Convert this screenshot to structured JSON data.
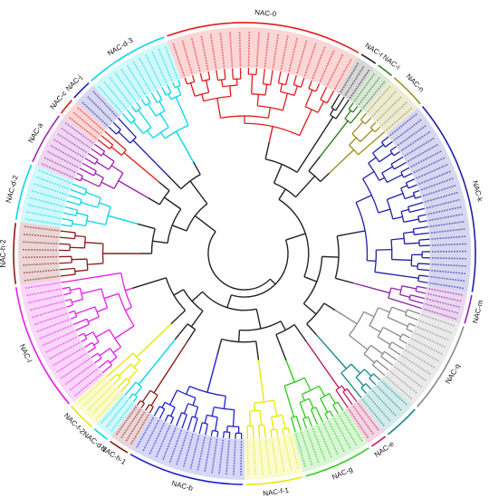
{
  "tree": {
    "clades": [
      {
        "id": "NAC-0",
        "label": "NAC-0",
        "color": "#e41a1c",
        "start": -20,
        "end": 30,
        "leaves": 20
      },
      {
        "id": "NAC-r",
        "label": "NAC-r",
        "color": "#222222",
        "start": 30,
        "end": 35,
        "leaves": 3
      },
      {
        "id": "NAC-i",
        "label": "NAC-i",
        "color": "#2e7d1f",
        "start": 35,
        "end": 40,
        "leaves": 3
      },
      {
        "id": "NAC-n",
        "label": "NAC-n",
        "color": "#9c8f1a",
        "start": 40,
        "end": 50,
        "leaves": 5
      },
      {
        "id": "NAC-k",
        "label": "NAC-k",
        "color": "#1f1fa8",
        "start": 50,
        "end": 100,
        "leaves": 26
      },
      {
        "id": "NAC-m",
        "label": "NAC-m",
        "color": "#8e24aa",
        "start": 100,
        "end": 108,
        "leaves": 5
      },
      {
        "id": "NAC-q",
        "label": "NAC-q",
        "color": "#8a8a8a",
        "start": 108,
        "end": 132,
        "leaves": 12
      },
      {
        "id": "NAC-s",
        "label": "",
        "color": "#138a8a",
        "start": 132,
        "end": 142,
        "leaves": 5
      },
      {
        "id": "NAC-e",
        "label": "NAC-e",
        "color": "#c2185b",
        "start": 142,
        "end": 147,
        "leaves": 3
      },
      {
        "id": "NAC-g",
        "label": "NAC-g",
        "color": "#2ecc1a",
        "start": 147,
        "end": 165,
        "leaves": 10
      },
      {
        "id": "NAC-f-1",
        "label": "NAC-f-1",
        "color": "#e8e800",
        "start": 165,
        "end": 180,
        "leaves": 8
      },
      {
        "id": "NAC-b",
        "label": "NAC-b",
        "color": "#2020d0",
        "start": 180,
        "end": 210,
        "leaves": 16
      },
      {
        "id": "NAC-h-1",
        "label": "NAC-h-1",
        "color": "#8b1a1a",
        "start": 210,
        "end": 216,
        "leaves": 4
      },
      {
        "id": "NAC-d-1",
        "label": "NAC-d-1",
        "color": "#00d8e8",
        "start": 216,
        "end": 221,
        "leaves": 3
      },
      {
        "id": "NAC-f-2",
        "label": "NAC-f-2",
        "color": "#e8e800",
        "start": 221,
        "end": 229,
        "leaves": 5
      },
      {
        "id": "NAC-l",
        "label": "NAC-l",
        "color": "#e81ae8",
        "start": 229,
        "end": 262,
        "leaves": 17
      },
      {
        "id": "NAC-h-2",
        "label": "NAC-h-2",
        "color": "#8b1a1a",
        "start": 262,
        "end": 278,
        "leaves": 8
      },
      {
        "id": "NAC-d-2",
        "label": "NAC-d-2",
        "color": "#00d8e8",
        "start": 278,
        "end": 293,
        "leaves": 8
      },
      {
        "id": "NAC-a",
        "label": "NAC-a",
        "color": "#a020b0",
        "start": 293,
        "end": 307,
        "leaves": 8
      },
      {
        "id": "NAC-c",
        "label": "NAC-c",
        "color": "#e41a1c",
        "start": 307,
        "end": 312,
        "leaves": 3
      },
      {
        "id": "NAC-j",
        "label": "NAC-j",
        "color": "#1f1fa8",
        "start": 312,
        "end": 318,
        "leaves": 3
      },
      {
        "id": "NAC-d-3",
        "label": "NAC-d-3",
        "color": "#00d8e8",
        "start": 318,
        "end": 340,
        "leaves": 12
      }
    ]
  }
}
